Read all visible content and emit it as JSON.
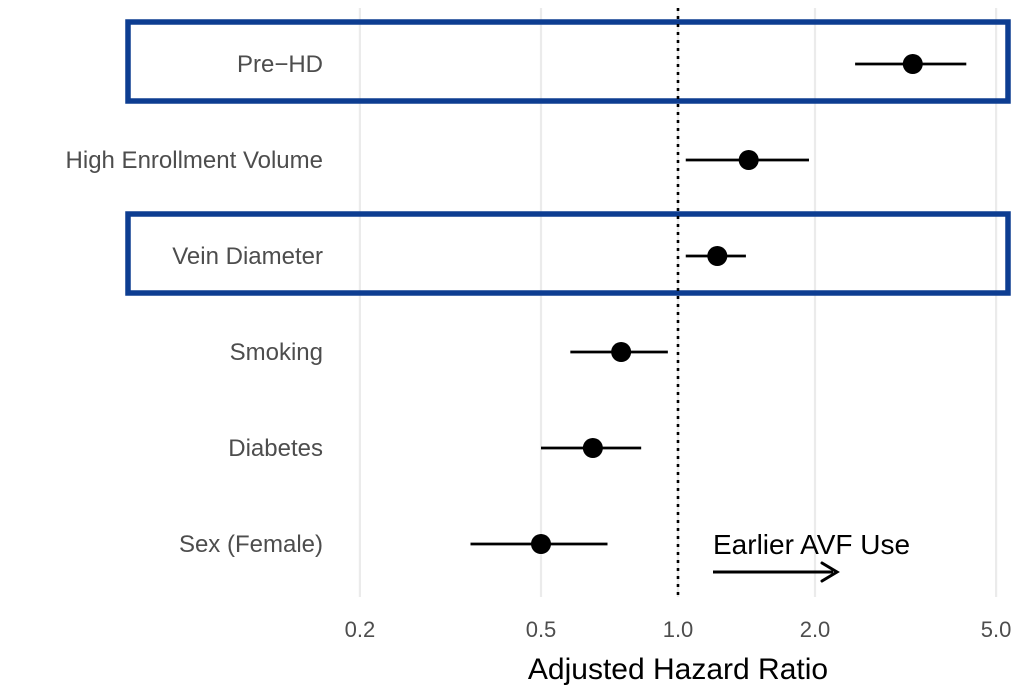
{
  "chart_data": {
    "type": "scatter",
    "subtype": "forest-plot",
    "title": "",
    "xlabel": "Adjusted Hazard Ratio",
    "ylabel": "",
    "x_scale": "log",
    "xlim": [
      0.137,
      5.5
    ],
    "x_ticks": [
      0.2,
      0.5,
      1.0,
      2.0,
      5.0
    ],
    "x_tick_labels": [
      "0.2",
      "0.5",
      "1.0",
      "2.0",
      "5.0"
    ],
    "reference_line": 1.0,
    "grid": "vertical-major",
    "legend": "none",
    "point_color": "#000000",
    "highlight_color": "#0d3d91",
    "points": [
      {
        "label": "Pre−HD",
        "estimate": 3.28,
        "lower": 2.45,
        "upper": 4.3,
        "highlighted": true
      },
      {
        "label": "High Enrollment Volume",
        "estimate": 1.43,
        "lower": 1.04,
        "upper": 1.94,
        "highlighted": false
      },
      {
        "label": "Vein Diameter",
        "estimate": 1.22,
        "lower": 1.04,
        "upper": 1.41,
        "highlighted": true
      },
      {
        "label": "Smoking",
        "estimate": 0.75,
        "lower": 0.58,
        "upper": 0.95,
        "highlighted": false
      },
      {
        "label": "Diabetes",
        "estimate": 0.65,
        "lower": 0.5,
        "upper": 0.83,
        "highlighted": false
      },
      {
        "label": "Sex (Female)",
        "estimate": 0.5,
        "lower": 0.35,
        "upper": 0.7,
        "highlighted": false
      }
    ],
    "annotation": {
      "text": "Earlier AVF Use",
      "arrow": "right"
    }
  }
}
